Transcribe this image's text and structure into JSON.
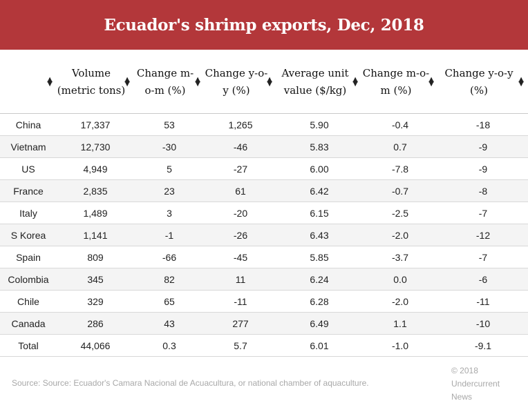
{
  "title": "Ecuador's shrimp exports, Dec, 2018",
  "columns": [
    {
      "label": ""
    },
    {
      "label": "Volume (metric tons)"
    },
    {
      "label": "Change m-o-m (%)"
    },
    {
      "label": "Change y-o-y (%)"
    },
    {
      "label": "Average unit value ($/kg)"
    },
    {
      "label": "Change m-o-m (%)"
    },
    {
      "label": "Change y-o-y (%)"
    }
  ],
  "rows": [
    [
      "China",
      "17,337",
      "53",
      "1,265",
      "5.90",
      "-0.4",
      "-18"
    ],
    [
      "Vietnam",
      "12,730",
      "-30",
      "-46",
      "5.83",
      "0.7",
      "-9"
    ],
    [
      "US",
      "4,949",
      "5",
      "-27",
      "6.00",
      "-7.8",
      "-9"
    ],
    [
      "France",
      "2,835",
      "23",
      "61",
      "6.42",
      "-0.7",
      "-8"
    ],
    [
      "Italy",
      "1,489",
      "3",
      "-20",
      "6.15",
      "-2.5",
      "-7"
    ],
    [
      "S Korea",
      "1,141",
      "-1",
      "-26",
      "6.43",
      "-2.0",
      "-12"
    ],
    [
      "Spain",
      "809",
      "-66",
      "-45",
      "5.85",
      "-3.7",
      "-7"
    ],
    [
      "Colombia",
      "345",
      "82",
      "11",
      "6.24",
      "0.0",
      "-6"
    ],
    [
      "Chile",
      "329",
      "65",
      "-11",
      "6.28",
      "-2.0",
      "-11"
    ],
    [
      "Canada",
      "286",
      "43",
      "277",
      "6.49",
      "1.1",
      "-10"
    ],
    [
      "Total",
      "44,066",
      "0.3",
      "5.7",
      "6.01",
      "-1.0",
      "-9.1"
    ]
  ],
  "source": "Source: Source: Ecuador's Camara Nacional de Acuacultura, or national chamber of aquaculture.",
  "credit": "© 2018 Undercurrent News",
  "colors": {
    "title_bar": "#b3373a",
    "stripe": "#f4f4f4",
    "footer_text": "#a8a8a8"
  },
  "icons": {
    "sort": "sort-updown-icon"
  }
}
